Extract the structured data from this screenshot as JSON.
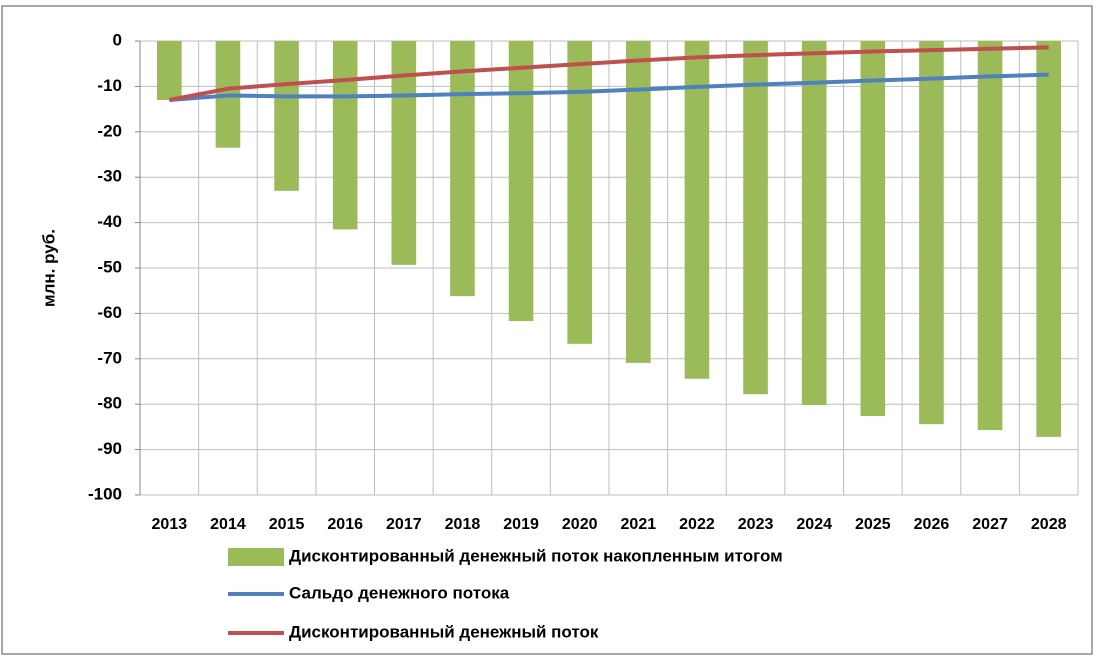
{
  "chart_data": {
    "type": "bar+line",
    "y_label": "млн. руб.",
    "categories": [
      "2013",
      "2014",
      "2015",
      "2016",
      "2017",
      "2018",
      "2019",
      "2020",
      "2021",
      "2022",
      "2023",
      "2024",
      "2025",
      "2026",
      "2027",
      "2028"
    ],
    "series": [
      {
        "name": "Дисконтированный денежный поток накопленным итогом",
        "type": "bar",
        "color": "#9bbb59",
        "values": [
          -13,
          -23.5,
          -33,
          -41.5,
          -49.3,
          -56.2,
          -61.7,
          -66.7,
          -70.9,
          -74.4,
          -77.8,
          -80.2,
          -82.6,
          -84.4,
          -85.7,
          -87.2
        ]
      },
      {
        "name": "Сальдо денежного потока",
        "type": "line",
        "color": "#4f81bd",
        "values": [
          -13,
          -12,
          -12.2,
          -12.2,
          -12,
          -11.7,
          -11.5,
          -11.2,
          -10.7,
          -10.1,
          -9.6,
          -9.2,
          -8.7,
          -8.3,
          -7.8,
          -7.4
        ]
      },
      {
        "name": "Дисконтированный денежный поток",
        "type": "line",
        "color": "#c0504d",
        "values": [
          -13,
          -10.5,
          -9.5,
          -8.6,
          -7.6,
          -6.7,
          -5.9,
          -5.1,
          -4.3,
          -3.6,
          -3.1,
          -2.7,
          -2.3,
          -2.0,
          -1.7,
          -1.4
        ]
      }
    ],
    "ylim": [
      -100,
      0
    ],
    "yticks": [
      0,
      -10,
      -20,
      -30,
      -40,
      -50,
      -60,
      -70,
      -80,
      -90,
      -100
    ],
    "grid": true,
    "legend": "bottom"
  }
}
